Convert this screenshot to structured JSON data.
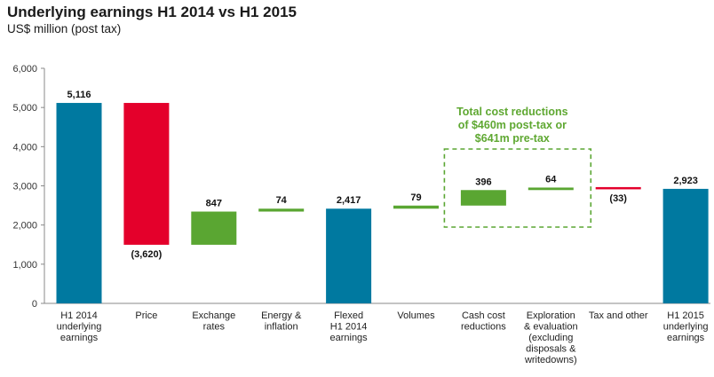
{
  "title": "Underlying earnings H1 2014 vs H1 2015",
  "subtitle": "US$ million (post tax)",
  "chart_data": {
    "type": "bar",
    "subtype": "waterfall",
    "ylim": [
      0,
      6000
    ],
    "yticks": [
      "0",
      "1,000",
      "2,000",
      "3,000",
      "4,000",
      "5,000",
      "6,000"
    ],
    "ytick_values": [
      0,
      1000,
      2000,
      3000,
      4000,
      5000,
      6000
    ],
    "grid": false,
    "colors": {
      "total": "#0079a0",
      "decrease": "#e4002b",
      "increase": "#5aa632",
      "note_border": "#5aa632"
    },
    "bars": [
      {
        "category": [
          "H1 2014",
          "underlying",
          "earnings"
        ],
        "kind": "total",
        "start": 0,
        "end": 5116,
        "label": "5,116"
      },
      {
        "category": [
          "Price"
        ],
        "kind": "decrease",
        "start": 5116,
        "end": 1496,
        "label": "(3,620)"
      },
      {
        "category": [
          "Exchange",
          "rates"
        ],
        "kind": "increase",
        "start": 1496,
        "end": 2343,
        "label": "847"
      },
      {
        "category": [
          "Energy &",
          "inflation"
        ],
        "kind": "increase",
        "start": 2343,
        "end": 2417,
        "label": "74"
      },
      {
        "category": [
          "Flexed",
          "H1 2014",
          "earnings"
        ],
        "kind": "total",
        "start": 0,
        "end": 2417,
        "label": "2,417"
      },
      {
        "category": [
          "Volumes"
        ],
        "kind": "increase",
        "start": 2417,
        "end": 2496,
        "label": "79"
      },
      {
        "category": [
          "Cash cost",
          "reductions"
        ],
        "kind": "increase",
        "start": 2496,
        "end": 2892,
        "label": "396"
      },
      {
        "category": [
          "Exploration",
          "& evaluation",
          "(excluding",
          "disposals &",
          "writedowns)"
        ],
        "kind": "increase",
        "start": 2892,
        "end": 2956,
        "label": "64"
      },
      {
        "category": [
          "Tax and other"
        ],
        "kind": "decrease",
        "start": 2956,
        "end": 2923,
        "label": "(33)"
      },
      {
        "category": [
          "H1 2015",
          "underlying",
          "earnings"
        ],
        "kind": "total",
        "start": 0,
        "end": 2923,
        "label": "2,923"
      }
    ],
    "annotation": {
      "lines": [
        "Total cost reductions",
        "of $460m post-tax or",
        "$641m pre-tax"
      ],
      "spans_categories": [
        6,
        7
      ]
    }
  }
}
